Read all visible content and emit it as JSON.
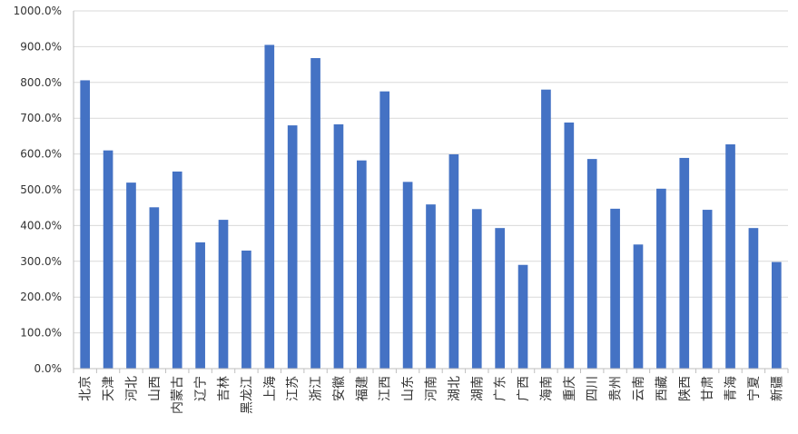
{
  "chart_data": {
    "type": "bar",
    "title": "",
    "xlabel": "",
    "ylabel": "",
    "ylim": [
      0,
      1000
    ],
    "y_tick_step": 100,
    "y_tick_labels": [
      "0.0%",
      "100.0%",
      "200.0%",
      "300.0%",
      "400.0%",
      "500.0%",
      "600.0%",
      "700.0%",
      "800.0%",
      "900.0%",
      "1000.0%"
    ],
    "grid": true,
    "legend": "none",
    "bar_color": "#4472C4",
    "grid_color": "#D9D9D9",
    "categories": [
      "北京",
      "天津",
      "河北",
      "山西",
      "内蒙古",
      "辽宁",
      "吉林",
      "黑龙江",
      "上海",
      "江苏",
      "浙江",
      "安徽",
      "福建",
      "江西",
      "山东",
      "河南",
      "湖北",
      "湖南",
      "广东",
      "广西",
      "海南",
      "重庆",
      "四川",
      "贵州",
      "云南",
      "西藏",
      "陕西",
      "甘肃",
      "青海",
      "宁夏",
      "新疆"
    ],
    "values": [
      806,
      610,
      520,
      451,
      551,
      353,
      416,
      330,
      905,
      680,
      868,
      683,
      582,
      775,
      522,
      459,
      599,
      446,
      393,
      290,
      780,
      688,
      586,
      447,
      347,
      503,
      589,
      444,
      627,
      393,
      298
    ]
  }
}
